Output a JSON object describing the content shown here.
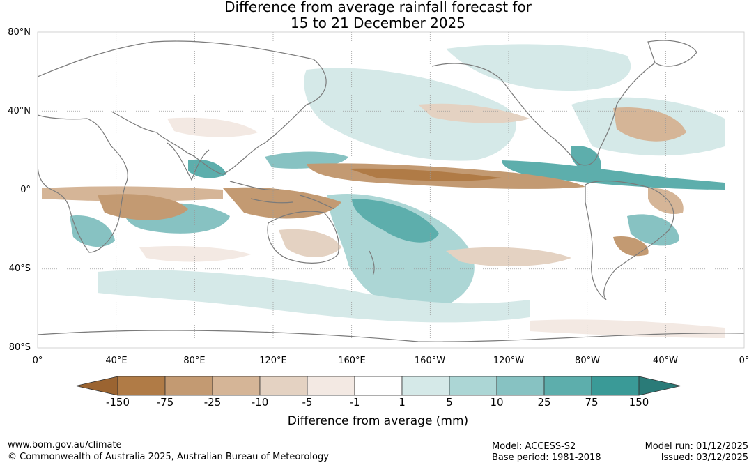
{
  "title": {
    "line1": "Difference from average rainfall forecast for",
    "line2": "15 to 21 December 2025"
  },
  "map": {
    "lat_labels": [
      "80°N",
      "40°N",
      "0°",
      "40°S",
      "80°S"
    ],
    "lon_labels": [
      "0°",
      "40°E",
      "80°E",
      "120°E",
      "160°E",
      "160°W",
      "120°W",
      "80°W",
      "40°W",
      "0°"
    ],
    "colors": {
      "ocean_bg": "#ffffff",
      "coast": "#7a7a7a",
      "grid": "#9a9a9a"
    }
  },
  "colorbar": {
    "title": "Difference from average (mm)",
    "tick_labels": [
      "-150",
      "-75",
      "-25",
      "-10",
      "-5",
      "-1",
      "1",
      "5",
      "10",
      "25",
      "75",
      "150"
    ],
    "colors": [
      "#9b6431",
      "#b07b46",
      "#c39a72",
      "#d5b597",
      "#e4d2c2",
      "#f3e9e3",
      "#ffffff",
      "#d5e9e8",
      "#acd6d5",
      "#87c2c2",
      "#5daeac",
      "#3a9a97",
      "#2a7b78"
    ]
  },
  "footer": {
    "website": "www.bom.gov.au/climate",
    "copyright": "© Commonwealth of Australia 2025, Australian Bureau of Meteorology",
    "model": "Model: ACCESS-S2",
    "base_period": "Base period: 1981-2018",
    "model_run": "Model run: 01/12/2025",
    "issued": "Issued: 03/12/2025"
  }
}
